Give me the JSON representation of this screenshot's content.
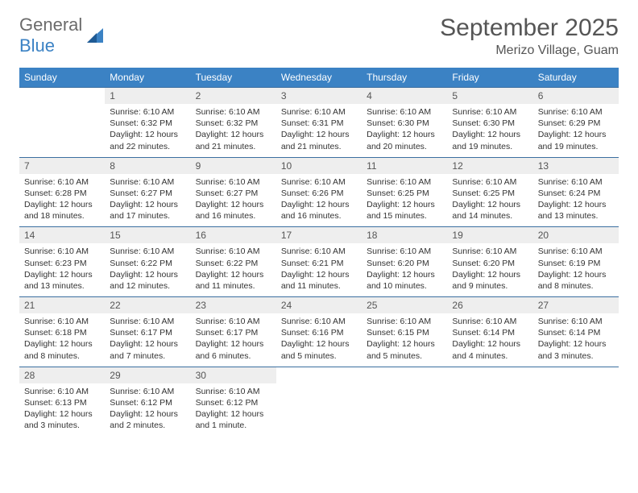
{
  "brand": {
    "word1": "General",
    "word2": "Blue"
  },
  "title": "September 2025",
  "location": "Merizo Village, Guam",
  "colors": {
    "header_bg": "#3b82c4",
    "header_text": "#ffffff",
    "daynum_bg": "#eeeeee",
    "text": "#555555",
    "border": "#3b6fa0"
  },
  "weekdays": [
    "Sunday",
    "Monday",
    "Tuesday",
    "Wednesday",
    "Thursday",
    "Friday",
    "Saturday"
  ],
  "weeks": [
    {
      "days": [
        {
          "n": "",
          "sunrise": "",
          "sunset": "",
          "daylight": ""
        },
        {
          "n": "1",
          "sunrise": "Sunrise: 6:10 AM",
          "sunset": "Sunset: 6:32 PM",
          "daylight": "Daylight: 12 hours and 22 minutes."
        },
        {
          "n": "2",
          "sunrise": "Sunrise: 6:10 AM",
          "sunset": "Sunset: 6:32 PM",
          "daylight": "Daylight: 12 hours and 21 minutes."
        },
        {
          "n": "3",
          "sunrise": "Sunrise: 6:10 AM",
          "sunset": "Sunset: 6:31 PM",
          "daylight": "Daylight: 12 hours and 21 minutes."
        },
        {
          "n": "4",
          "sunrise": "Sunrise: 6:10 AM",
          "sunset": "Sunset: 6:30 PM",
          "daylight": "Daylight: 12 hours and 20 minutes."
        },
        {
          "n": "5",
          "sunrise": "Sunrise: 6:10 AM",
          "sunset": "Sunset: 6:30 PM",
          "daylight": "Daylight: 12 hours and 19 minutes."
        },
        {
          "n": "6",
          "sunrise": "Sunrise: 6:10 AM",
          "sunset": "Sunset: 6:29 PM",
          "daylight": "Daylight: 12 hours and 19 minutes."
        }
      ]
    },
    {
      "days": [
        {
          "n": "7",
          "sunrise": "Sunrise: 6:10 AM",
          "sunset": "Sunset: 6:28 PM",
          "daylight": "Daylight: 12 hours and 18 minutes."
        },
        {
          "n": "8",
          "sunrise": "Sunrise: 6:10 AM",
          "sunset": "Sunset: 6:27 PM",
          "daylight": "Daylight: 12 hours and 17 minutes."
        },
        {
          "n": "9",
          "sunrise": "Sunrise: 6:10 AM",
          "sunset": "Sunset: 6:27 PM",
          "daylight": "Daylight: 12 hours and 16 minutes."
        },
        {
          "n": "10",
          "sunrise": "Sunrise: 6:10 AM",
          "sunset": "Sunset: 6:26 PM",
          "daylight": "Daylight: 12 hours and 16 minutes."
        },
        {
          "n": "11",
          "sunrise": "Sunrise: 6:10 AM",
          "sunset": "Sunset: 6:25 PM",
          "daylight": "Daylight: 12 hours and 15 minutes."
        },
        {
          "n": "12",
          "sunrise": "Sunrise: 6:10 AM",
          "sunset": "Sunset: 6:25 PM",
          "daylight": "Daylight: 12 hours and 14 minutes."
        },
        {
          "n": "13",
          "sunrise": "Sunrise: 6:10 AM",
          "sunset": "Sunset: 6:24 PM",
          "daylight": "Daylight: 12 hours and 13 minutes."
        }
      ]
    },
    {
      "days": [
        {
          "n": "14",
          "sunrise": "Sunrise: 6:10 AM",
          "sunset": "Sunset: 6:23 PM",
          "daylight": "Daylight: 12 hours and 13 minutes."
        },
        {
          "n": "15",
          "sunrise": "Sunrise: 6:10 AM",
          "sunset": "Sunset: 6:22 PM",
          "daylight": "Daylight: 12 hours and 12 minutes."
        },
        {
          "n": "16",
          "sunrise": "Sunrise: 6:10 AM",
          "sunset": "Sunset: 6:22 PM",
          "daylight": "Daylight: 12 hours and 11 minutes."
        },
        {
          "n": "17",
          "sunrise": "Sunrise: 6:10 AM",
          "sunset": "Sunset: 6:21 PM",
          "daylight": "Daylight: 12 hours and 11 minutes."
        },
        {
          "n": "18",
          "sunrise": "Sunrise: 6:10 AM",
          "sunset": "Sunset: 6:20 PM",
          "daylight": "Daylight: 12 hours and 10 minutes."
        },
        {
          "n": "19",
          "sunrise": "Sunrise: 6:10 AM",
          "sunset": "Sunset: 6:20 PM",
          "daylight": "Daylight: 12 hours and 9 minutes."
        },
        {
          "n": "20",
          "sunrise": "Sunrise: 6:10 AM",
          "sunset": "Sunset: 6:19 PM",
          "daylight": "Daylight: 12 hours and 8 minutes."
        }
      ]
    },
    {
      "days": [
        {
          "n": "21",
          "sunrise": "Sunrise: 6:10 AM",
          "sunset": "Sunset: 6:18 PM",
          "daylight": "Daylight: 12 hours and 8 minutes."
        },
        {
          "n": "22",
          "sunrise": "Sunrise: 6:10 AM",
          "sunset": "Sunset: 6:17 PM",
          "daylight": "Daylight: 12 hours and 7 minutes."
        },
        {
          "n": "23",
          "sunrise": "Sunrise: 6:10 AM",
          "sunset": "Sunset: 6:17 PM",
          "daylight": "Daylight: 12 hours and 6 minutes."
        },
        {
          "n": "24",
          "sunrise": "Sunrise: 6:10 AM",
          "sunset": "Sunset: 6:16 PM",
          "daylight": "Daylight: 12 hours and 5 minutes."
        },
        {
          "n": "25",
          "sunrise": "Sunrise: 6:10 AM",
          "sunset": "Sunset: 6:15 PM",
          "daylight": "Daylight: 12 hours and 5 minutes."
        },
        {
          "n": "26",
          "sunrise": "Sunrise: 6:10 AM",
          "sunset": "Sunset: 6:14 PM",
          "daylight": "Daylight: 12 hours and 4 minutes."
        },
        {
          "n": "27",
          "sunrise": "Sunrise: 6:10 AM",
          "sunset": "Sunset: 6:14 PM",
          "daylight": "Daylight: 12 hours and 3 minutes."
        }
      ]
    },
    {
      "days": [
        {
          "n": "28",
          "sunrise": "Sunrise: 6:10 AM",
          "sunset": "Sunset: 6:13 PM",
          "daylight": "Daylight: 12 hours and 3 minutes."
        },
        {
          "n": "29",
          "sunrise": "Sunrise: 6:10 AM",
          "sunset": "Sunset: 6:12 PM",
          "daylight": "Daylight: 12 hours and 2 minutes."
        },
        {
          "n": "30",
          "sunrise": "Sunrise: 6:10 AM",
          "sunset": "Sunset: 6:12 PM",
          "daylight": "Daylight: 12 hours and 1 minute."
        },
        {
          "n": "",
          "sunrise": "",
          "sunset": "",
          "daylight": ""
        },
        {
          "n": "",
          "sunrise": "",
          "sunset": "",
          "daylight": ""
        },
        {
          "n": "",
          "sunrise": "",
          "sunset": "",
          "daylight": ""
        },
        {
          "n": "",
          "sunrise": "",
          "sunset": "",
          "daylight": ""
        }
      ]
    }
  ]
}
